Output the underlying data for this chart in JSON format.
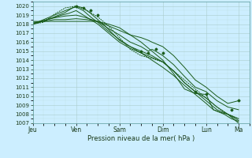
{
  "bg_color": "#cceeff",
  "grid_color_major": "#aacccc",
  "grid_color_minor": "#bbdddd",
  "line_color": "#1a5c1a",
  "xlabel": "Pression niveau de la mer( hPa )",
  "ylim": [
    1007,
    1020.5
  ],
  "yticks": [
    1007,
    1008,
    1009,
    1010,
    1011,
    1012,
    1013,
    1014,
    1015,
    1016,
    1017,
    1018,
    1019,
    1020
  ],
  "xtick_labels": [
    "Jeu",
    "Ven",
    "Sam",
    "Dim",
    "Lun",
    "Ma"
  ],
  "xtick_positions": [
    0,
    24,
    48,
    72,
    96,
    114
  ],
  "total_hours": 120,
  "lines": [
    [
      0,
      1018.0,
      4,
      1018.2,
      8,
      1018.5,
      12,
      1018.8,
      18,
      1019.3,
      22,
      1019.8,
      24,
      1020.0,
      28,
      1019.8,
      32,
      1019.2,
      36,
      1018.5,
      40,
      1017.8,
      44,
      1017.0,
      48,
      1016.2,
      54,
      1015.5,
      60,
      1014.8,
      66,
      1014.0,
      72,
      1013.2,
      78,
      1012.3,
      84,
      1011.2,
      90,
      1010.2,
      96,
      1009.2,
      100,
      1008.5,
      106,
      1008.0,
      110,
      1007.5,
      114,
      1007.2
    ],
    [
      0,
      1018.0,
      6,
      1018.5,
      12,
      1019.0,
      18,
      1019.5,
      22,
      1019.8,
      24,
      1019.9,
      28,
      1019.5,
      32,
      1018.8,
      36,
      1018.2,
      42,
      1017.2,
      48,
      1016.3,
      54,
      1015.5,
      60,
      1015.0,
      66,
      1014.5,
      72,
      1013.8,
      78,
      1012.8,
      84,
      1011.5,
      90,
      1010.5,
      96,
      1009.8,
      102,
      1008.8,
      108,
      1008.0,
      114,
      1007.5
    ],
    [
      0,
      1018.1,
      6,
      1018.4,
      12,
      1018.7,
      18,
      1018.9,
      24,
      1019.0,
      28,
      1018.8,
      36,
      1018.3,
      42,
      1017.5,
      48,
      1016.8,
      54,
      1016.0,
      60,
      1015.5,
      64,
      1015.0,
      66,
      1015.2,
      68,
      1015.0,
      72,
      1014.5,
      78,
      1013.5,
      84,
      1012.2,
      90,
      1011.0,
      96,
      1010.5,
      102,
      1009.5,
      108,
      1008.8,
      114,
      1008.5
    ],
    [
      0,
      1018.2,
      6,
      1018.3,
      12,
      1018.5,
      18,
      1018.5,
      24,
      1018.6,
      30,
      1018.5,
      36,
      1018.3,
      42,
      1017.8,
      48,
      1017.3,
      54,
      1016.8,
      60,
      1016.5,
      64,
      1016.2,
      66,
      1016.0,
      72,
      1015.5,
      78,
      1014.5,
      84,
      1013.2,
      90,
      1011.8,
      96,
      1011.0,
      102,
      1010.0,
      108,
      1009.2,
      114,
      1009.5
    ],
    [
      0,
      1018.3,
      6,
      1018.3,
      12,
      1018.3,
      18,
      1018.3,
      24,
      1018.3,
      30,
      1018.3,
      36,
      1018.3,
      42,
      1018.0,
      48,
      1017.6,
      54,
      1016.8,
      60,
      1016.0,
      66,
      1015.0,
      72,
      1014.0,
      78,
      1012.5,
      84,
      1010.8,
      90,
      1010.3,
      96,
      1010.2,
      100,
      1008.5,
      104,
      1008.2,
      108,
      1008.0,
      114,
      1007.3
    ],
    [
      0,
      1018.0,
      8,
      1018.5,
      16,
      1019.0,
      20,
      1019.2,
      24,
      1019.5,
      28,
      1019.0,
      32,
      1018.5,
      36,
      1018.0,
      42,
      1017.0,
      48,
      1016.0,
      54,
      1015.3,
      60,
      1014.8,
      66,
      1014.3,
      72,
      1013.8,
      78,
      1012.8,
      84,
      1011.5,
      90,
      1010.5,
      96,
      1009.5,
      102,
      1008.5,
      108,
      1008.0,
      114,
      1007.0
    ]
  ],
  "dotted_line": [
    0,
    1018.0,
    6,
    1018.2,
    12,
    1019.1,
    18,
    1019.8,
    24,
    1020.0,
    30,
    1019.5,
    36,
    1018.8,
    42,
    1017.8,
    48,
    1016.5,
    54,
    1015.2,
    60,
    1014.5,
    66,
    1014.2,
    72,
    1013.8,
    78,
    1012.8,
    84,
    1011.8,
    90,
    1010.8,
    96,
    1009.8,
    102,
    1008.8,
    108,
    1008.0,
    114,
    1007.5
  ],
  "scatter_pts": [
    [
      24,
      1020.0
    ],
    [
      28,
      1019.8
    ],
    [
      32,
      1019.5
    ],
    [
      36,
      1019.0
    ],
    [
      60,
      1015.0
    ],
    [
      64,
      1014.8
    ],
    [
      68,
      1015.2
    ],
    [
      72,
      1014.8
    ],
    [
      90,
      1010.5
    ],
    [
      96,
      1010.2
    ],
    [
      110,
      1008.5
    ],
    [
      114,
      1009.5
    ]
  ]
}
